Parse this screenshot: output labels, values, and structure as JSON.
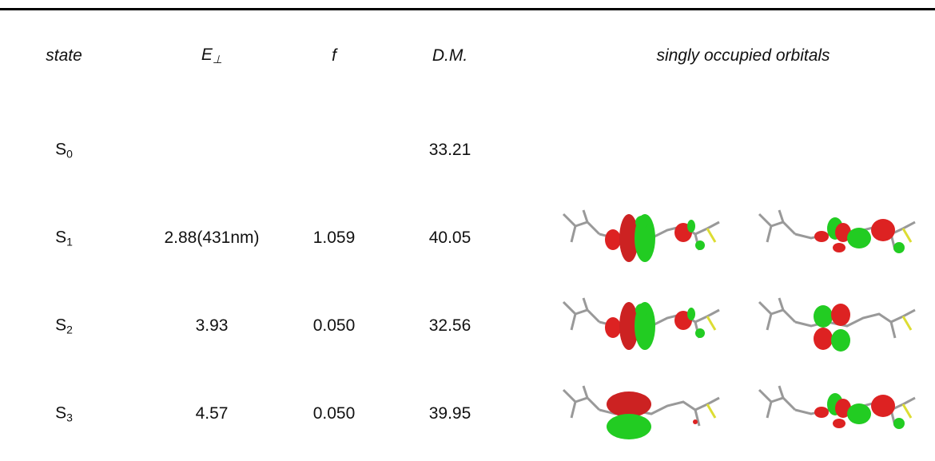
{
  "table": {
    "header": [
      {
        "text": "state"
      },
      {
        "text": "E",
        "sub": "⊥"
      },
      {
        "text": "f"
      },
      {
        "text": "D.M."
      },
      {
        "text": "singly occupied orbitals"
      }
    ],
    "rows": [
      {
        "state": {
          "text": "S",
          "sub": "0"
        },
        "dm": "33.21"
      },
      {
        "state": {
          "text": "S",
          "sub": "1"
        },
        "energy": "2.88(431nm)",
        "f": "1.059",
        "dm": "40.05"
      },
      {
        "state": {
          "text": "S",
          "sub": "2"
        },
        "energy": "3.93",
        "f": "0.050",
        "dm": "32.56"
      },
      {
        "state": {
          "text": "S",
          "sub": "3"
        },
        "energy": "4.57",
        "f": "0.050",
        "dm": "39.95"
      }
    ]
  }
}
